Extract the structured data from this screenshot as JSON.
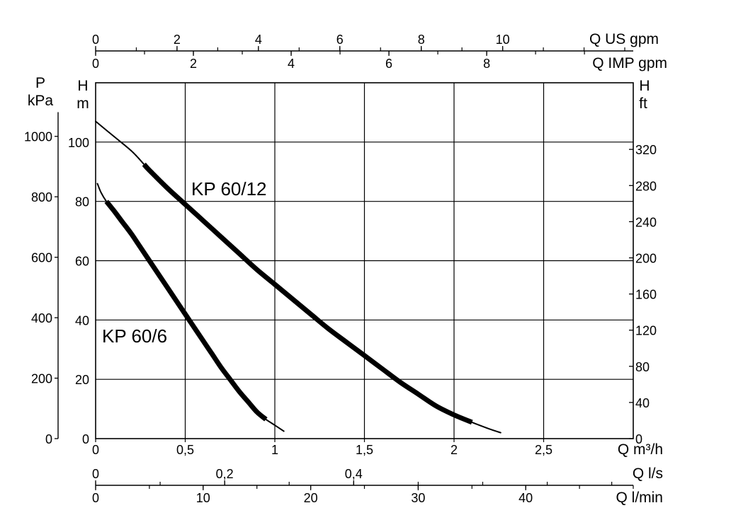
{
  "chart_data": {
    "type": "line",
    "grid": true,
    "x": {
      "label": "Q m³/h",
      "range": [
        0,
        3
      ],
      "tick_values": [
        0,
        0.5,
        1,
        1.5,
        2,
        2.5
      ],
      "tick_labels": [
        "0",
        "0,5",
        "1",
        "1,5",
        "2",
        "2,5"
      ]
    },
    "x_secondary": [
      {
        "label": "Q US gpm",
        "tick_values": [
          0,
          2,
          4,
          6,
          8,
          10
        ],
        "tick_labels": [
          "0",
          "2",
          "4",
          "6",
          "8",
          "10"
        ]
      },
      {
        "label": "Q IMP gpm",
        "tick_values": [
          0,
          2,
          4,
          6,
          8
        ],
        "tick_labels": [
          "0",
          "2",
          "4",
          "6",
          "8"
        ]
      },
      {
        "label": "Q l/s",
        "tick_values": [
          0,
          0.2,
          0.4
        ],
        "tick_labels": [
          "0",
          "0,2",
          "0,4"
        ]
      },
      {
        "label": "Q l/min",
        "tick_values": [
          0,
          10,
          20,
          30,
          40
        ],
        "tick_labels": [
          "0",
          "10",
          "20",
          "30",
          "40"
        ]
      }
    ],
    "y": {
      "label_top": "H",
      "label_unit": "m",
      "range": [
        0,
        120
      ],
      "tick_values": [
        0,
        20,
        40,
        60,
        80,
        100
      ],
      "tick_labels": [
        "0",
        "20",
        "40",
        "60",
        "80",
        "100"
      ]
    },
    "y_secondary": [
      {
        "label_top": "P",
        "label_unit": "kPa",
        "tick_values": [
          0,
          200,
          400,
          600,
          800,
          1000
        ],
        "tick_labels": [
          "0",
          "200",
          "400",
          "600",
          "800",
          "1000"
        ]
      },
      {
        "label_top": "H",
        "label_unit": "ft",
        "tick_values": [
          0,
          40,
          80,
          120,
          160,
          200,
          240,
          280,
          320
        ],
        "tick_labels": [
          "0",
          "40",
          "80",
          "120",
          "160",
          "200",
          "240",
          "280",
          "320"
        ]
      }
    ],
    "series": [
      {
        "name": "KP 60/12",
        "x": [
          0,
          0.1,
          0.2,
          0.27,
          0.3,
          0.4,
          0.5,
          0.6,
          0.7,
          0.8,
          0.9,
          1.0,
          1.1,
          1.2,
          1.3,
          1.4,
          1.5,
          1.6,
          1.7,
          1.8,
          1.9,
          2.0,
          2.1,
          2.2,
          2.26
        ],
        "y": [
          107,
          102,
          97,
          92.5,
          90.5,
          84.5,
          79,
          73.5,
          68,
          62.5,
          57,
          52,
          47,
          42,
          37,
          32.5,
          28,
          23.5,
          19,
          15,
          11,
          8,
          5.5,
          3.2,
          2
        ],
        "duty_range": [
          0.27,
          2.1
        ]
      },
      {
        "name": "KP 60/6",
        "x": [
          0.01,
          0.03,
          0.06,
          0.1,
          0.15,
          0.2,
          0.25,
          0.3,
          0.35,
          0.4,
          0.45,
          0.5,
          0.55,
          0.6,
          0.65,
          0.7,
          0.75,
          0.8,
          0.85,
          0.9,
          0.95,
          1.0,
          1.05
        ],
        "y": [
          86,
          83,
          80,
          77,
          73,
          69,
          64.5,
          60,
          55.5,
          51,
          46.5,
          42,
          37.5,
          33,
          28.5,
          24,
          20,
          16,
          12.5,
          9,
          6.5,
          4.5,
          2.5
        ],
        "duty_range": [
          0.06,
          0.97
        ]
      }
    ]
  }
}
